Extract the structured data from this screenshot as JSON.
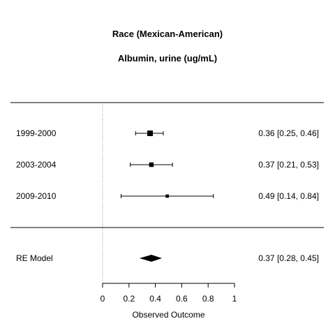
{
  "chart_data": {
    "type": "forest",
    "title": "Race (Mexican-American)",
    "subtitle": "Albumin, urine (ug/mL)",
    "xlabel": "Observed Outcome",
    "xlim": [
      0,
      1
    ],
    "xticks": [
      0,
      0.2,
      0.4,
      0.6,
      0.8,
      1
    ],
    "xtick_labels": [
      "0",
      "0.2",
      "0.4",
      "0.6",
      "0.8",
      "1"
    ],
    "reference_line": 0,
    "studies": [
      {
        "label": "1999-2000",
        "estimate": 0.36,
        "ci_low": 0.25,
        "ci_high": 0.46,
        "weight": 1.0,
        "text": "0.36 [0.25, 0.46]"
      },
      {
        "label": "2003-2004",
        "estimate": 0.37,
        "ci_low": 0.21,
        "ci_high": 0.53,
        "weight": 0.55,
        "text": "0.37 [0.21, 0.53]"
      },
      {
        "label": "2009-2010",
        "estimate": 0.49,
        "ci_low": 0.14,
        "ci_high": 0.84,
        "weight": 0.2,
        "text": "0.49 [0.14, 0.84]"
      }
    ],
    "summary": {
      "label": "RE Model",
      "estimate": 0.37,
      "ci_low": 0.28,
      "ci_high": 0.45,
      "text": "0.37 [0.28, 0.45]"
    }
  }
}
